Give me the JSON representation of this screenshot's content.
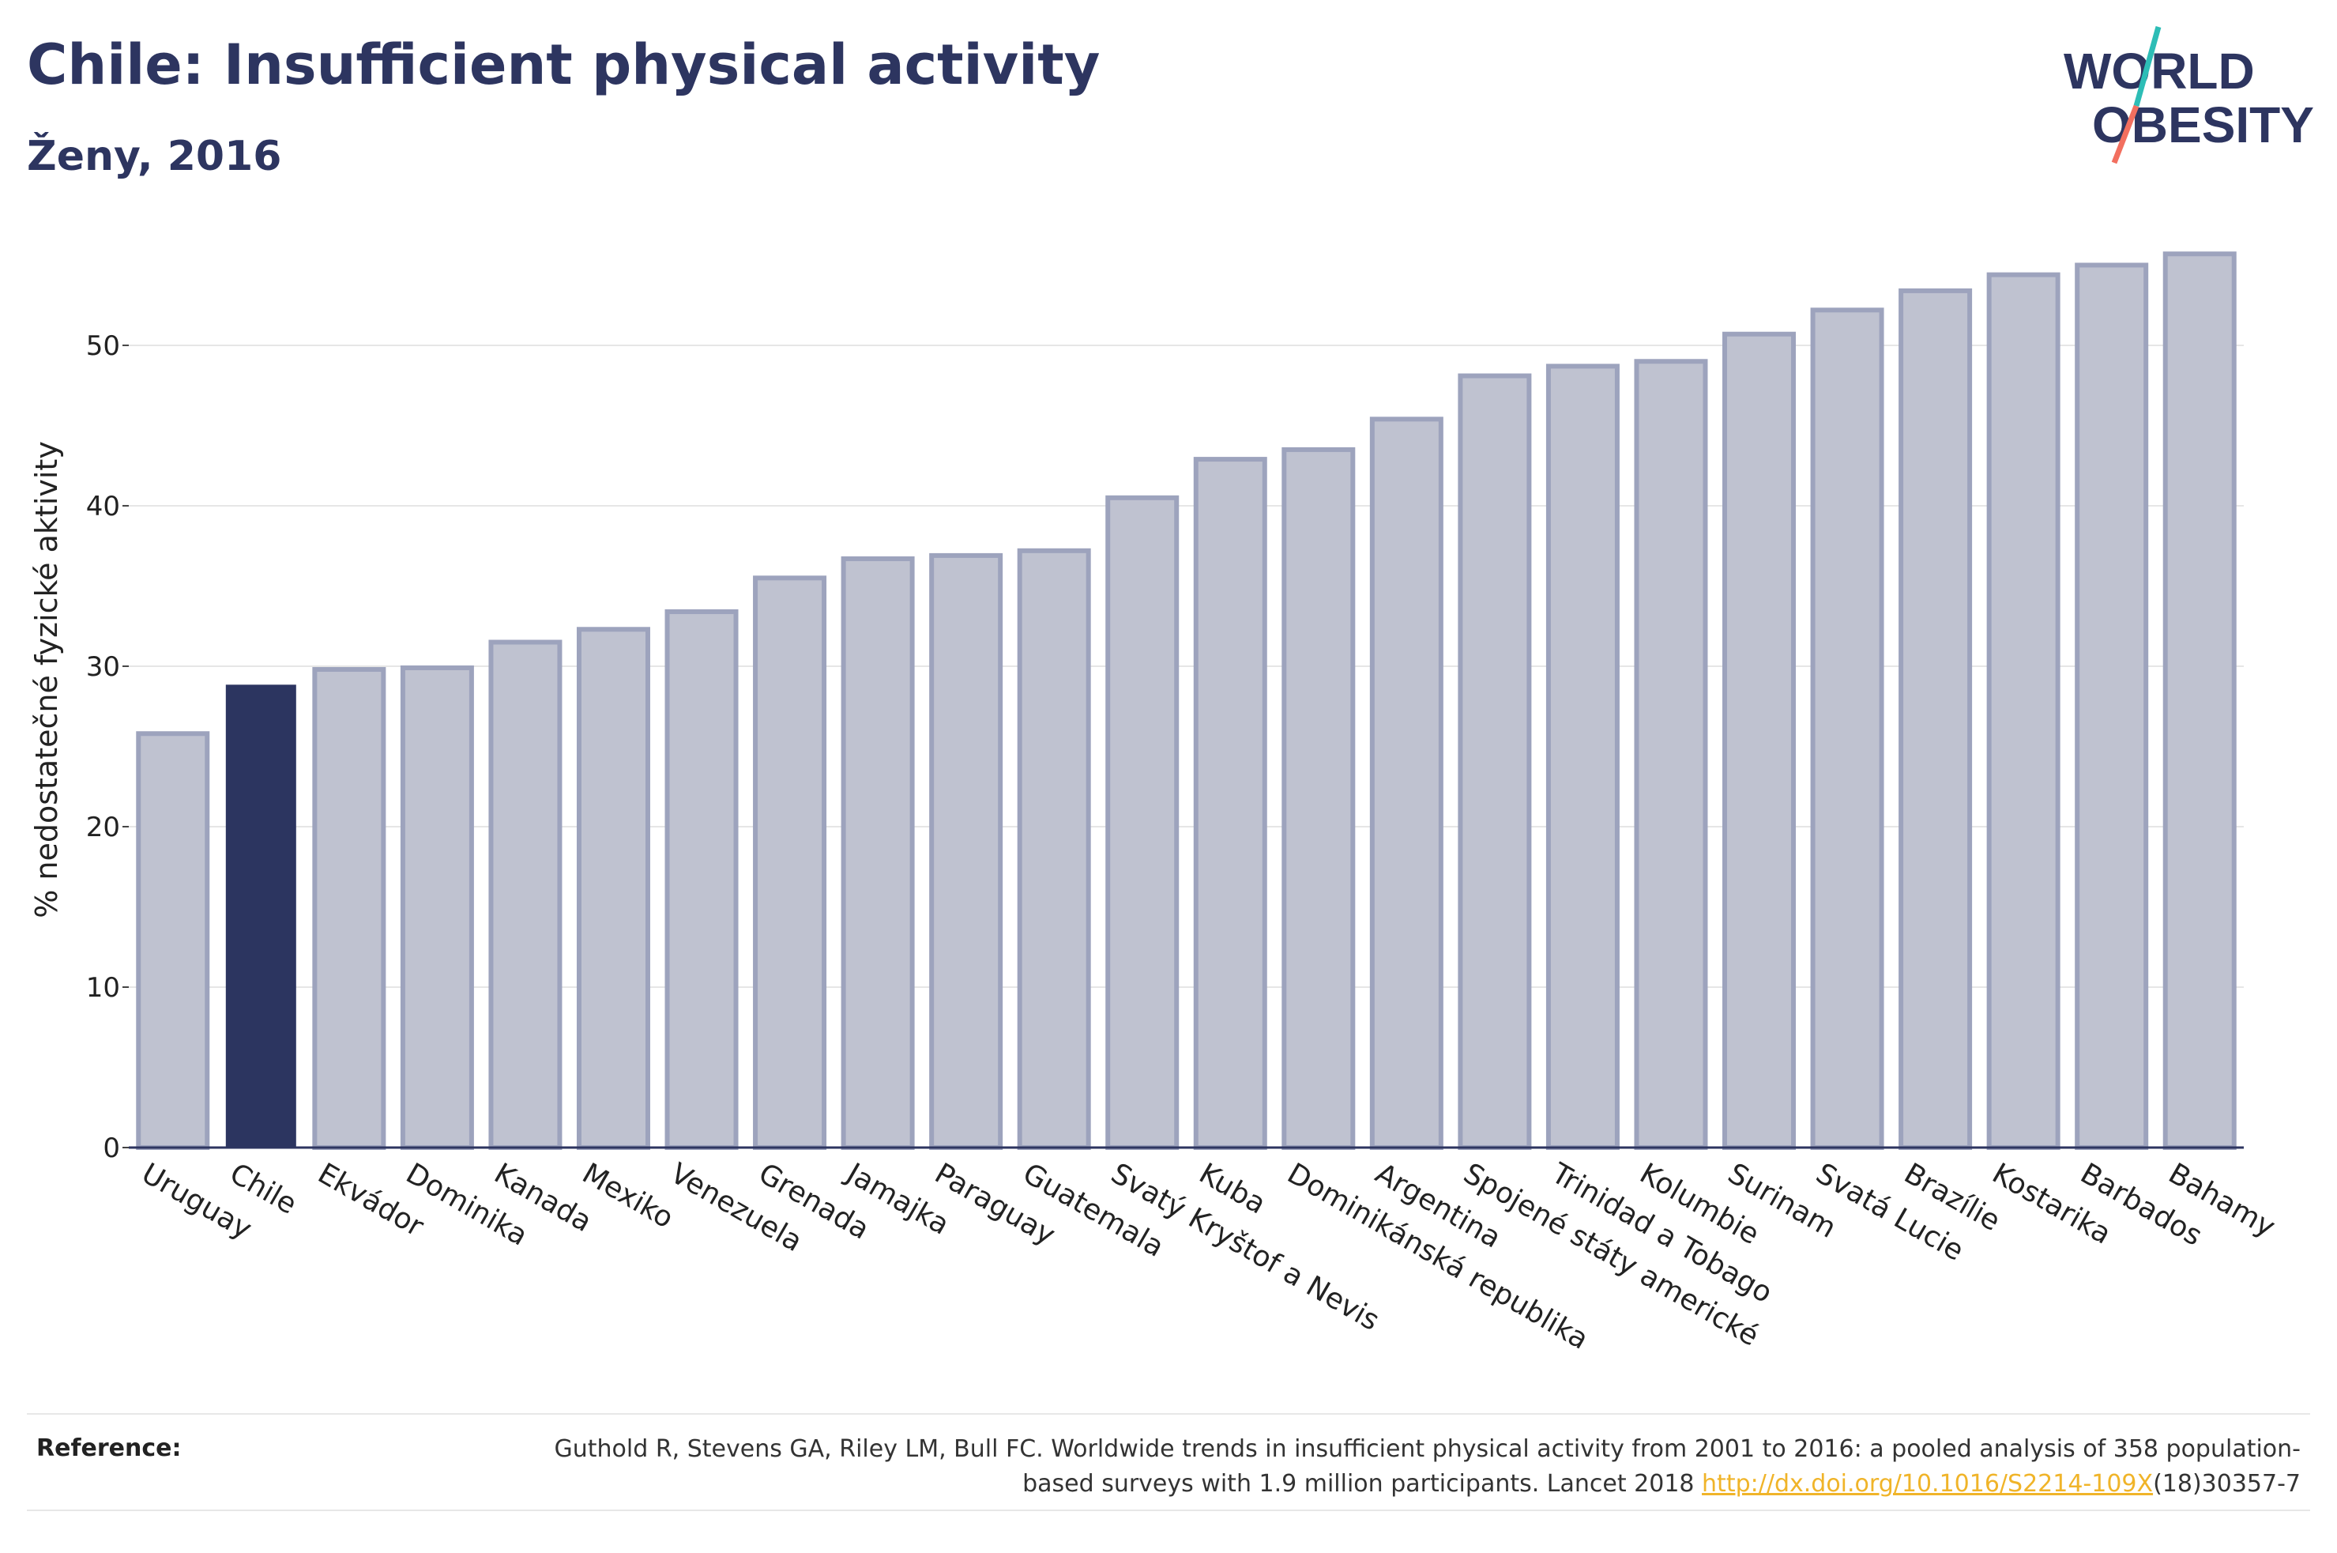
{
  "header": {
    "title": "Chile: Insufficient physical activity",
    "subtitle": "Ženy, 2016"
  },
  "logo": {
    "line1": "WORLD",
    "line2": "OBESITY",
    "text_color": "#2d3560",
    "slash_colors": [
      "#2dbdb6",
      "#f26f5f"
    ]
  },
  "chart_data": {
    "type": "bar",
    "title": "",
    "xlabel": "",
    "ylabel": "% nedostatečné fyzické aktivity",
    "ylim": [
      0,
      56.5
    ],
    "yticks": [
      0,
      10,
      20,
      30,
      40,
      50
    ],
    "grid": true,
    "highlight_category": "Chile",
    "colors": {
      "bar": "#bfc2d0",
      "bar_edge": "#9da3bd",
      "highlight": "#2c3560",
      "grid": "#e6e6e6",
      "axis": "#2d3560"
    },
    "categories": [
      "Uruguay",
      "Chile",
      "Ekvádor",
      "Dominika",
      "Kanada",
      "Mexiko",
      "Venezuela",
      "Grenada",
      "Jamajka",
      "Paraguay",
      "Guatemala",
      "Svatý Kryštof a Nevis",
      "Kuba",
      "Dominikánská republika",
      "Argentina",
      "Spojené státy americké",
      "Trinidad a Tobago",
      "Kolumbie",
      "Surinam",
      "Svatá Lucie",
      "Brazílie",
      "Kostarika",
      "Barbados",
      "Bahamy"
    ],
    "values": [
      25.8,
      28.8,
      29.8,
      29.9,
      31.5,
      32.3,
      33.4,
      35.5,
      36.7,
      36.9,
      37.2,
      40.5,
      42.9,
      43.5,
      45.4,
      48.1,
      48.7,
      49.0,
      50.7,
      52.2,
      53.4,
      54.4,
      55.0,
      55.7
    ]
  },
  "reference": {
    "label": "Reference:",
    "text_before": "Guthold R, Stevens GA, Riley LM, Bull FC. Worldwide trends in insufficient physical activity from 2001 to 2016: a pooled analysis of 358 population-based surveys with 1.9 million participants. Lancet 2018 ",
    "link_text": "http://dx.doi.org/10.1016/S2214-109X",
    "text_after": "(18)30357-7"
  }
}
